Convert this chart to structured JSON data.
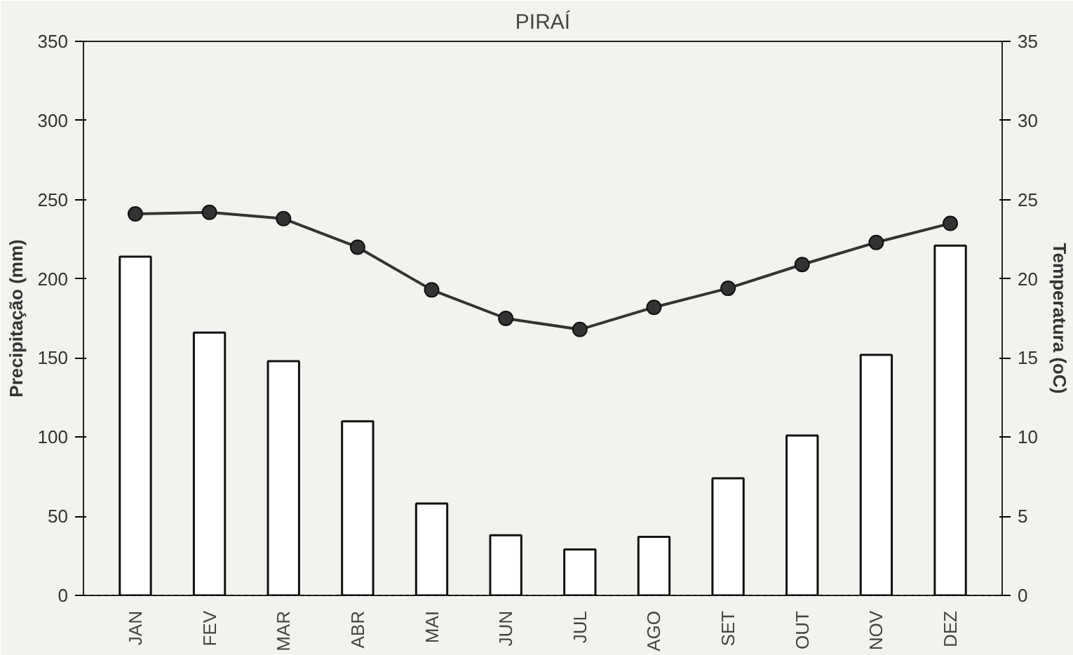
{
  "chart_data": {
    "type": "bar",
    "title": "PIRAÍ",
    "ylabel": "Precipitação (mm)",
    "y2label": "Temperatura (oC)",
    "categories": [
      "JAN",
      "FEV",
      "MAR",
      "ABR",
      "MAI",
      "JUN",
      "JUL",
      "AGO",
      "SET",
      "OUT",
      "NOV",
      "DEZ"
    ],
    "series": [
      {
        "color": "#ffffff",
        "values": [
          214,
          166,
          148,
          110,
          58,
          38,
          29,
          37,
          74,
          101,
          152,
          221
        ]
      },
      {
        "type": "line",
        "axis": "y2",
        "color": "#333333",
        "marker": "circle",
        "values": [
          24.1,
          24.2,
          23.8,
          22.0,
          19.3,
          17.5,
          16.8,
          18.2,
          19.4,
          20.9,
          22.3,
          23.5
        ]
      }
    ],
    "ylim": [
      0,
      350
    ],
    "yticks": [
      0,
      50,
      100,
      150,
      200,
      250,
      300,
      350
    ],
    "y2lim": [
      0,
      35
    ],
    "y2ticks": [
      0,
      5,
      10,
      15,
      20,
      25,
      30,
      35
    ],
    "grid": false
  }
}
